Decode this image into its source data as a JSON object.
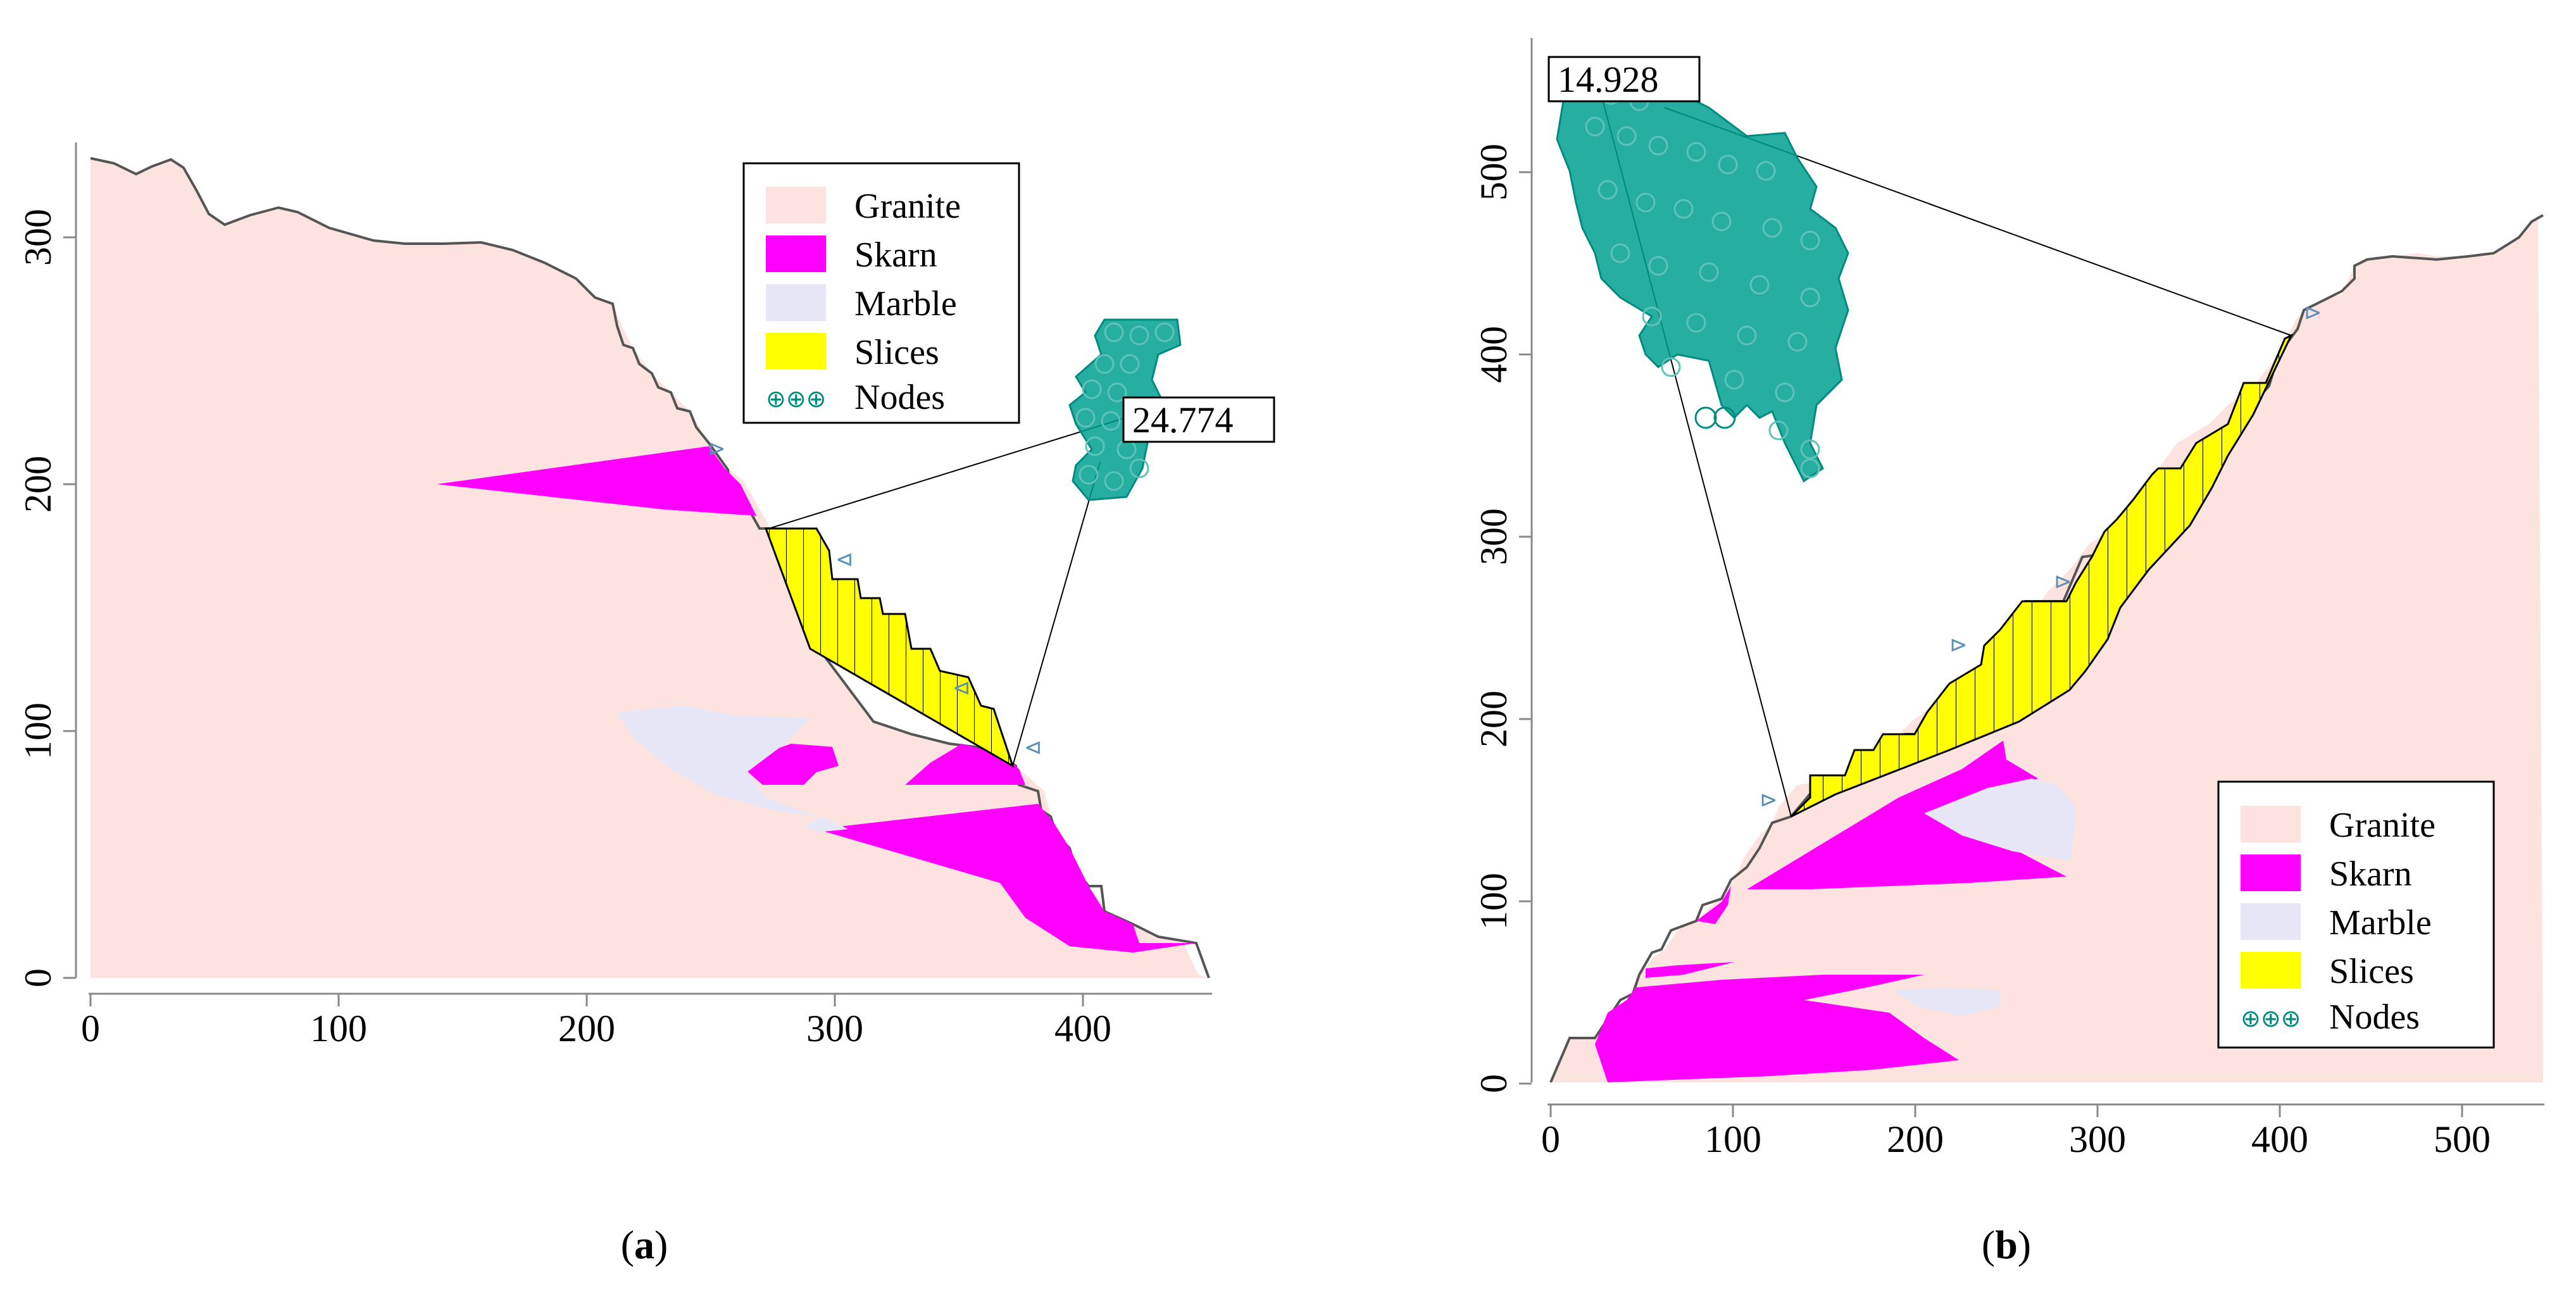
{
  "colors": {
    "granite": "#fde3df",
    "skarn": "#ff00ff",
    "marble": "#e6e6f7",
    "slices": "#ffff00",
    "nodes": "#008b80",
    "arrow": "#5b8fb3"
  },
  "legend_a": {
    "items": [
      {
        "label": "Granite",
        "kind": "granite"
      },
      {
        "label": "Skarn",
        "kind": "skarn"
      },
      {
        "label": "Marble",
        "kind": "marble"
      },
      {
        "label": "Slices",
        "kind": "slices"
      },
      {
        "label": "Nodes",
        "kind": "nodes"
      }
    ]
  },
  "legend_b": {
    "items": [
      {
        "label": "Granite",
        "kind": "granite"
      },
      {
        "label": "Skarn",
        "kind": "skarn"
      },
      {
        "label": "Marble",
        "kind": "marble"
      },
      {
        "label": "Slices",
        "kind": "slices"
      },
      {
        "label": "Nodes",
        "kind": "nodes"
      }
    ]
  },
  "panel_a": {
    "factor_of_safety": "24.774",
    "x_ticks": [
      "0",
      "100",
      "200",
      "300",
      "400"
    ],
    "y_ticks": [
      "0",
      "100",
      "200",
      "300"
    ],
    "caption_open": "(",
    "caption_letter": "a",
    "caption_close": ")"
  },
  "panel_b": {
    "factor_of_safety": "14.928",
    "x_ticks": [
      "0",
      "100",
      "200",
      "300",
      "400",
      "500"
    ],
    "y_ticks": [
      "0",
      "100",
      "200",
      "300",
      "400",
      "500"
    ],
    "caption_open": "(",
    "caption_letter": "b",
    "caption_close": ")"
  }
}
